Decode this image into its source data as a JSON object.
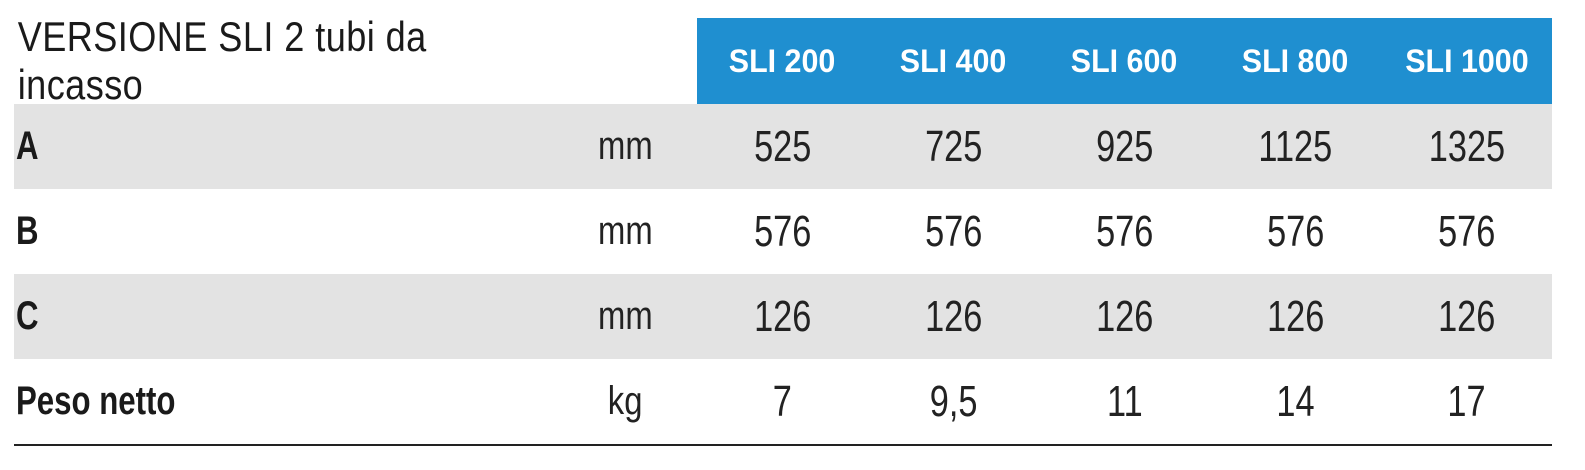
{
  "table": {
    "title": "VERSIONE SLI 2 tubi da incasso",
    "models": [
      "SLI 200",
      "SLI 400",
      "SLI 600",
      "SLI 800",
      "SLI 1000"
    ],
    "rows": [
      {
        "label": "A",
        "unit": "mm",
        "values": [
          "525",
          "725",
          "925",
          "1125",
          "1325"
        ]
      },
      {
        "label": "B",
        "unit": "mm",
        "values": [
          "576",
          "576",
          "576",
          "576",
          "576"
        ]
      },
      {
        "label": "C",
        "unit": "mm",
        "values": [
          "126",
          "126",
          "126",
          "126",
          "126"
        ]
      },
      {
        "label": "Peso netto",
        "unit": "kg",
        "values": [
          "7",
          "9,5",
          "11",
          "14",
          "17"
        ]
      }
    ]
  },
  "colors": {
    "header_blue": "#1f8fd0",
    "row_shade": "#e3e3e3"
  }
}
